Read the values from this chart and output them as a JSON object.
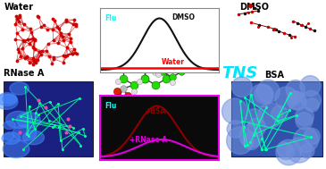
{
  "background_color": "#ffffff",
  "tns_label": "TNS",
  "tns_color": "#00e5ff",
  "water_label": "Water",
  "dmso_label": "DMSO",
  "rnase_label": "RNase A",
  "bsa_label": "BSA",
  "flu_label": "Flu",
  "flu_color": "#00ffff",
  "plot1_title": "DMSO",
  "plot1_line1_label": "Water",
  "plot1_line1_color": "#ff0000",
  "plot1_line2_color": "#111111",
  "plot1_bg": "#ffffff",
  "plot2_line1_label": "+BSA",
  "plot2_line1_color": "#8b0000",
  "plot2_line2_label": "+RNase A",
  "plot2_line2_color": "#dd00dd",
  "plot2_border_color": "#ee00ee",
  "fig_width": 3.65,
  "fig_height": 1.89,
  "dpi": 100,
  "water_color": "#cc0000",
  "dmso_stick_color": "#8b0000",
  "rnase_bg": "#1a2080",
  "rnase_protein_color": "#00ff99",
  "rnase_blue_blob": "#4488ff",
  "bsa_bg": "#3050aa",
  "bsa_sphere_color": "#7090dd",
  "bsa_protein_color": "#00ffaa",
  "green": "#22dd00",
  "white_atom": "#e0e0e0",
  "blue_atom": "#3333dd",
  "red_atom": "#dd2200",
  "gray_atom": "#bbbbbb",
  "bond_color": "#444444"
}
